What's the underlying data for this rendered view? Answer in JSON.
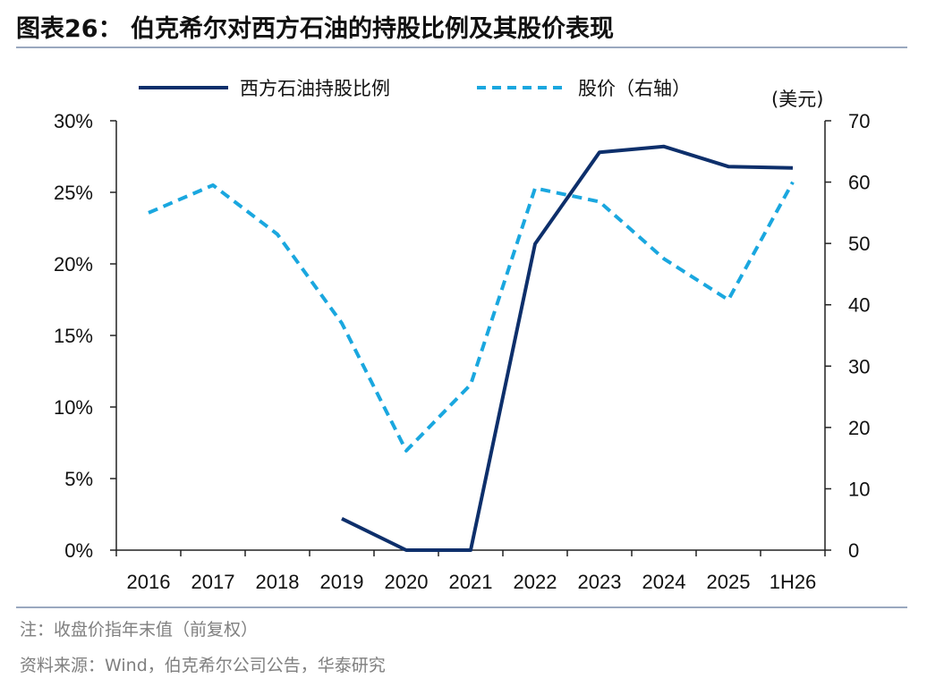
{
  "title": "图表26： 伯克希尔对西方石油的持股比例及其股价表现",
  "note": "注：收盘价指年末值（前复权）",
  "source": "资料来源：Wind，伯克希尔公司公告，华泰研究",
  "colors": {
    "series1": "#0d2f6b",
    "series2": "#1aa7df",
    "rule": "#9aa8bf"
  },
  "chart_data": {
    "type": "line",
    "categories": [
      "2016",
      "2017",
      "2018",
      "2019",
      "2020",
      "2021",
      "2022",
      "2023",
      "2024",
      "2025",
      "1H26"
    ],
    "y_left": {
      "ticks": [
        "0%",
        "5%",
        "10%",
        "15%",
        "20%",
        "25%",
        "30%"
      ],
      "ylim": [
        0,
        30
      ]
    },
    "y_right": {
      "label": "(美元)",
      "ticks": [
        "0",
        "10",
        "20",
        "30",
        "40",
        "50",
        "60",
        "70"
      ],
      "ylim": [
        0,
        70
      ]
    },
    "series": [
      {
        "name": "西方石油持股比例",
        "axis": "left",
        "style": "solid",
        "values": [
          null,
          null,
          null,
          2.2,
          0.0,
          0.0,
          21.4,
          27.8,
          28.2,
          26.8,
          26.7
        ]
      },
      {
        "name": "股价（右轴）",
        "axis": "right",
        "style": "dashed",
        "values": [
          55.0,
          59.5,
          51.5,
          37.0,
          16.2,
          27.0,
          59.0,
          56.8,
          47.5,
          40.8,
          60.0
        ]
      }
    ],
    "legend_position": "top",
    "grid": false
  }
}
